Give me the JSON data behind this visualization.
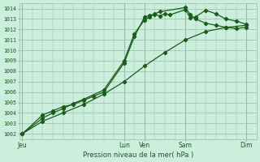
{
  "bg_color": "#cceedd",
  "grid_color": "#99bbaa",
  "line_color": "#1a5c1a",
  "xlabel_text": "Pression niveau de la mer( hPa )",
  "ylim": [
    1001.5,
    1014.5
  ],
  "yticks": [
    1002,
    1003,
    1004,
    1005,
    1006,
    1007,
    1008,
    1009,
    1010,
    1011,
    1012,
    1013,
    1014
  ],
  "xtick_labels": [
    "Jeu",
    "Lun",
    "Ven",
    "Sam",
    "Dim"
  ],
  "xtick_positions": [
    0,
    10,
    12,
    16,
    22
  ],
  "xvlines_major": [
    0,
    10,
    12,
    16,
    22
  ],
  "xminor_step": 1,
  "xlim": [
    -0.3,
    23
  ],
  "lines": [
    {
      "x": [
        0,
        2,
        3,
        4,
        5,
        6,
        7,
        8,
        10,
        11,
        12,
        12.5,
        13,
        13.5,
        14,
        14.5,
        16,
        16.5,
        17,
        18,
        19,
        20,
        21,
        22
      ],
      "y": [
        1002.0,
        1003.8,
        1004.2,
        1004.6,
        1004.8,
        1005.2,
        1005.6,
        1006.0,
        1008.8,
        1011.3,
        1013.2,
        1013.35,
        1013.45,
        1013.3,
        1013.5,
        1013.4,
        1013.9,
        1013.1,
        1013.2,
        1013.85,
        1013.5,
        1013.0,
        1012.8,
        1012.5
      ]
    },
    {
      "x": [
        0,
        2,
        3,
        4,
        5,
        6,
        8,
        10,
        11,
        12,
        12.5,
        13,
        13.5,
        16,
        16.5,
        17,
        18,
        19,
        20,
        21,
        22
      ],
      "y": [
        1002.0,
        1003.5,
        1004.0,
        1004.4,
        1004.9,
        1005.3,
        1006.2,
        1009.0,
        1011.6,
        1012.9,
        1013.2,
        1013.5,
        1013.7,
        1014.1,
        1013.4,
        1013.0,
        1012.6,
        1012.4,
        1012.2,
        1012.1,
        1012.2
      ]
    },
    {
      "x": [
        0,
        2,
        4,
        6,
        8,
        10,
        12,
        14,
        16,
        18,
        20,
        22
      ],
      "y": [
        1002.0,
        1003.2,
        1004.0,
        1004.8,
        1005.8,
        1007.0,
        1008.5,
        1009.8,
        1011.0,
        1011.8,
        1012.2,
        1012.4
      ]
    }
  ]
}
